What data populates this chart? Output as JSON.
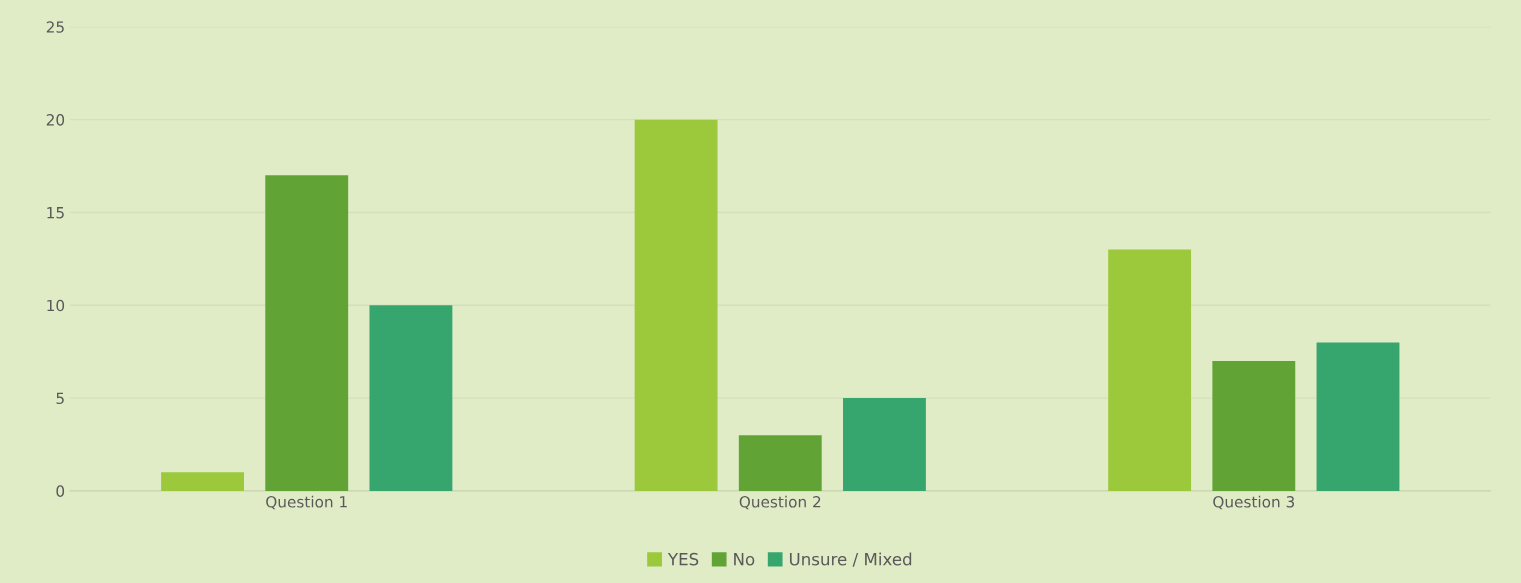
{
  "chart_data": {
    "type": "bar",
    "categories": [
      "Question 1",
      "Question 2",
      "Question 3"
    ],
    "series": [
      {
        "name": "YES",
        "color": "#9bc93b",
        "values": [
          1,
          20,
          13
        ]
      },
      {
        "name": "No",
        "color": "#62a336",
        "values": [
          17,
          3,
          7
        ]
      },
      {
        "name": "Unsure / Mixed",
        "color": "#36a66e",
        "values": [
          10,
          5,
          8
        ]
      }
    ],
    "ylim": [
      0,
      25
    ],
    "yticks": [
      0,
      5,
      10,
      15,
      20,
      25
    ],
    "grid": "y",
    "legend": "bottom"
  }
}
